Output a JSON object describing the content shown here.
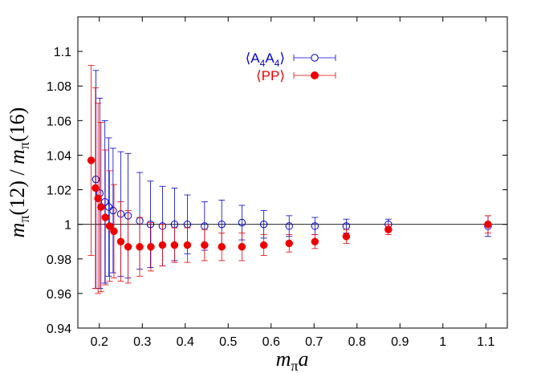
{
  "chart_data": {
    "type": "scatter",
    "title": "",
    "xlabel": "m_π a",
    "ylabel": "m_π(12) / m_π(16)",
    "xlim": [
      0.15,
      1.15
    ],
    "ylim": [
      0.94,
      1.12
    ],
    "x_ticks": [
      0.2,
      0.3,
      0.4,
      0.5,
      0.6,
      0.7,
      0.8,
      0.9,
      1,
      1.1
    ],
    "x_tick_labels": [
      "0.2",
      "0.3",
      "0.4",
      "0.5",
      "0.6",
      "0.7",
      "0.8",
      "0.9",
      "1",
      "1.1"
    ],
    "y_ticks": [
      0.94,
      0.96,
      0.98,
      1,
      1.02,
      1.04,
      1.06,
      1.08,
      1.1
    ],
    "y_tick_labels": [
      "0.94",
      "0.96",
      "0.98",
      "1",
      "1.02",
      "1.04",
      "1.06",
      "1.08",
      "1.1"
    ],
    "reference_line": 1.0,
    "legend_position": "top-center",
    "series": [
      {
        "name": "⟨A4A4⟩",
        "color": "#0000cc",
        "marker": "open-circle",
        "points": [
          {
            "x": 0.192,
            "y": 1.026,
            "err": 0.063
          },
          {
            "x": 0.201,
            "y": 1.018,
            "err": 0.055
          },
          {
            "x": 0.213,
            "y": 1.013,
            "err": 0.047
          },
          {
            "x": 0.222,
            "y": 1.01,
            "err": 0.04
          },
          {
            "x": 0.232,
            "y": 1.008,
            "err": 0.036
          },
          {
            "x": 0.25,
            "y": 1.006,
            "err": 0.036
          },
          {
            "x": 0.267,
            "y": 1.005,
            "err": 0.036
          },
          {
            "x": 0.294,
            "y": 1.002,
            "err": 0.028
          },
          {
            "x": 0.319,
            "y": 1.0,
            "err": 0.025
          },
          {
            "x": 0.347,
            "y": 0.999,
            "err": 0.023
          },
          {
            "x": 0.375,
            "y": 1.0,
            "err": 0.021
          },
          {
            "x": 0.405,
            "y": 1.0,
            "err": 0.017
          },
          {
            "x": 0.445,
            "y": 0.999,
            "err": 0.014
          },
          {
            "x": 0.485,
            "y": 1.0,
            "err": 0.014
          },
          {
            "x": 0.532,
            "y": 1.001,
            "err": 0.01
          },
          {
            "x": 0.583,
            "y": 1.0,
            "err": 0.008
          },
          {
            "x": 0.642,
            "y": 0.999,
            "err": 0.006
          },
          {
            "x": 0.702,
            "y": 0.999,
            "err": 0.005
          },
          {
            "x": 0.775,
            "y": 0.999,
            "err": 0.004
          },
          {
            "x": 0.873,
            "y": 1.0,
            "err": 0.003
          },
          {
            "x": 1.105,
            "y": 0.999,
            "err": 0.006
          }
        ]
      },
      {
        "name": "⟨PP⟩",
        "color": "#ee0000",
        "marker": "filled-circle",
        "points": [
          {
            "x": 0.181,
            "y": 1.037,
            "err": 0.055
          },
          {
            "x": 0.191,
            "y": 1.021,
            "err": 0.058
          },
          {
            "x": 0.197,
            "y": 1.015,
            "err": 0.055
          },
          {
            "x": 0.204,
            "y": 1.01,
            "err": 0.049
          },
          {
            "x": 0.214,
            "y": 1.004,
            "err": 0.039
          },
          {
            "x": 0.224,
            "y": 0.999,
            "err": 0.032
          },
          {
            "x": 0.234,
            "y": 0.996,
            "err": 0.027
          },
          {
            "x": 0.25,
            "y": 0.99,
            "err": 0.023
          },
          {
            "x": 0.267,
            "y": 0.987,
            "err": 0.021
          },
          {
            "x": 0.294,
            "y": 0.987,
            "err": 0.017
          },
          {
            "x": 0.32,
            "y": 0.987,
            "err": 0.014
          },
          {
            "x": 0.347,
            "y": 0.988,
            "err": 0.012
          },
          {
            "x": 0.375,
            "y": 0.988,
            "err": 0.01
          },
          {
            "x": 0.405,
            "y": 0.988,
            "err": 0.01
          },
          {
            "x": 0.445,
            "y": 0.988,
            "err": 0.009
          },
          {
            "x": 0.485,
            "y": 0.987,
            "err": 0.008
          },
          {
            "x": 0.532,
            "y": 0.987,
            "err": 0.008
          },
          {
            "x": 0.583,
            "y": 0.988,
            "err": 0.006
          },
          {
            "x": 0.642,
            "y": 0.989,
            "err": 0.005
          },
          {
            "x": 0.702,
            "y": 0.99,
            "err": 0.004
          },
          {
            "x": 0.775,
            "y": 0.993,
            "err": 0.004
          },
          {
            "x": 0.873,
            "y": 0.997,
            "err": 0.003
          },
          {
            "x": 1.105,
            "y": 1.0,
            "err": 0.005
          }
        ]
      }
    ]
  }
}
